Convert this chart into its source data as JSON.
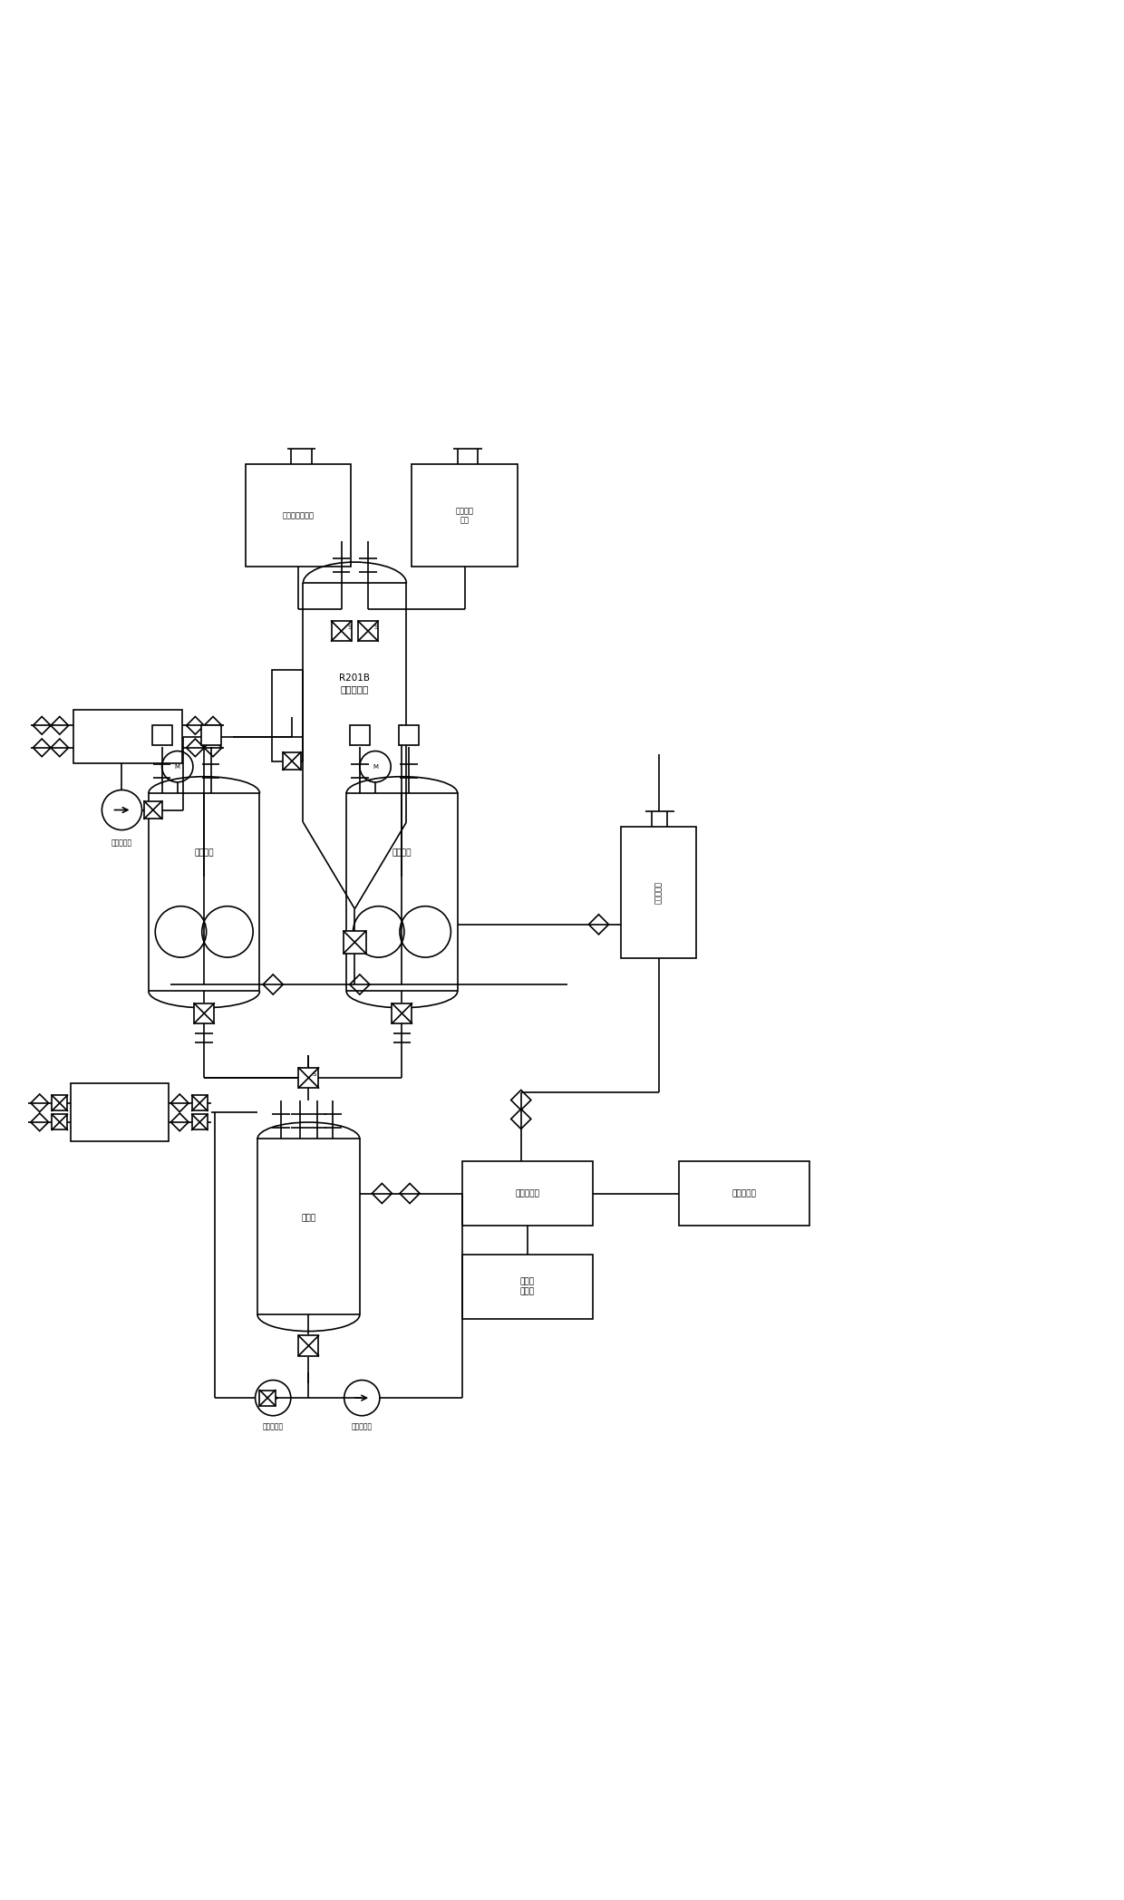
{
  "bg_color": "#ffffff",
  "line_color": "#000000",
  "figsize": [
    12.4,
    20.96
  ],
  "dpi": 100,
  "tank1_label": "三氧化硫高位槽",
  "tank2_label": "中间体高\n位槽",
  "reactor_label": "R201B\n硫化反应釜",
  "sulftank_label": "硫化液釜",
  "watermeter_label": "酸水计量槽",
  "hydrotank_label": "水解釜",
  "hydrosep_label": "水解分层槽",
  "hydroacid_label": "水解酸相槽",
  "hydroorg_label": "水解有\n机相槽",
  "sulfpump_label": "硫化循环泵",
  "hydropump1_label": "水解循环泵",
  "hydropump2_label": "水解循环泵"
}
